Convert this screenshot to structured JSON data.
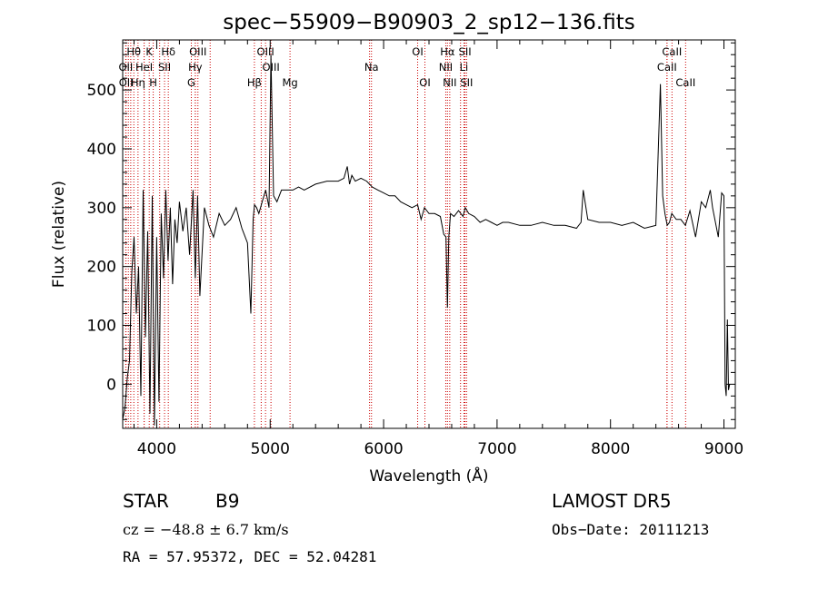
{
  "chart_data": {
    "type": "line",
    "title": "spec−55909−B90903_2_sp12−136.fits",
    "xlabel": "Wavelength (Å)",
    "ylabel": "Flux (relative)",
    "xlim": [
      3700,
      9100
    ],
    "ylim": [
      -75,
      585
    ],
    "x_ticks": [
      4000,
      5000,
      6000,
      7000,
      8000,
      9000
    ],
    "y_ticks": [
      0,
      100,
      200,
      300,
      400,
      500
    ],
    "grid": false,
    "line_color": "#000000",
    "marker_color": "#cc0000",
    "series": [
      {
        "x": [
          3700,
          3720,
          3740,
          3760,
          3780,
          3800,
          3820,
          3840,
          3860,
          3880,
          3900,
          3920,
          3940,
          3960,
          3980,
          4000,
          4020,
          4040,
          4060,
          4080,
          4100,
          4120,
          4140,
          4160,
          4180,
          4200,
          4230,
          4260,
          4290,
          4320,
          4340,
          4360,
          4380,
          4420,
          4460,
          4500,
          4550,
          4600,
          4650,
          4700,
          4750,
          4800,
          4830,
          4850,
          4862,
          4880,
          4900,
          4930,
          4960,
          4990,
          5007,
          5030,
          5060,
          5100,
          5150,
          5200,
          5250,
          5300,
          5400,
          5500,
          5600,
          5650,
          5680,
          5700,
          5720,
          5750,
          5800,
          5850,
          5900,
          5950,
          6000,
          6050,
          6100,
          6150,
          6200,
          6250,
          6300,
          6330,
          6360,
          6400,
          6450,
          6500,
          6530,
          6550,
          6563,
          6575,
          6590,
          6620,
          6660,
          6700,
          6720,
          6750,
          6800,
          6850,
          6900,
          6950,
          7000,
          7050,
          7100,
          7200,
          7300,
          7400,
          7500,
          7600,
          7700,
          7740,
          7760,
          7800,
          7900,
          8000,
          8100,
          8200,
          8300,
          8400,
          8440,
          8460,
          8480,
          8500,
          8520,
          8540,
          8580,
          8620,
          8660,
          8700,
          8750,
          8800,
          8840,
          8880,
          8900,
          8950,
          8980,
          9000,
          9010,
          9020,
          9030,
          9040,
          9050
        ],
        "y": [
          -60,
          -40,
          10,
          40,
          190,
          250,
          120,
          200,
          -20,
          330,
          80,
          260,
          -50,
          320,
          -70,
          250,
          -30,
          290,
          180,
          330,
          210,
          300,
          170,
          280,
          240,
          310,
          260,
          300,
          220,
          330,
          180,
          320,
          150,
          300,
          270,
          250,
          290,
          270,
          280,
          300,
          265,
          240,
          120,
          280,
          305,
          300,
          290,
          310,
          330,
          300,
          560,
          320,
          310,
          330,
          330,
          330,
          335,
          330,
          340,
          345,
          345,
          350,
          370,
          340,
          355,
          345,
          350,
          345,
          335,
          330,
          325,
          320,
          320,
          310,
          305,
          300,
          305,
          280,
          300,
          290,
          290,
          285,
          255,
          250,
          130,
          250,
          290,
          285,
          295,
          285,
          300,
          290,
          285,
          275,
          280,
          275,
          270,
          275,
          275,
          270,
          270,
          275,
          270,
          270,
          265,
          275,
          330,
          280,
          275,
          275,
          270,
          275,
          265,
          270,
          510,
          320,
          290,
          270,
          275,
          290,
          280,
          280,
          270,
          295,
          250,
          310,
          300,
          330,
          300,
          250,
          325,
          320,
          0,
          -20,
          110,
          -10,
          0
        ]
      }
    ],
    "spectral_lines": [
      {
        "label": "Hθ",
        "x": 3798
      },
      {
        "label": "K",
        "x": 3934
      },
      {
        "label": "Hδ",
        "x": 4102
      },
      {
        "label": "OIII",
        "x": 4363
      },
      {
        "label": "OIII",
        "x": 4959
      },
      {
        "label": "OI",
        "x": 6300
      },
      {
        "label": "Hα",
        "x": 6563
      },
      {
        "label": "SII",
        "x": 6717
      },
      {
        "label": "CaII",
        "x": 8542
      },
      {
        "label": "OII",
        "x": 3727
      },
      {
        "label": "HeI",
        "x": 3889
      },
      {
        "label": "SII",
        "x": 4069
      },
      {
        "label": "Hγ",
        "x": 4340
      },
      {
        "label": "OIII",
        "x": 5007
      },
      {
        "label": "Na",
        "x": 5893
      },
      {
        "label": "NII",
        "x": 6548
      },
      {
        "label": "Li",
        "x": 6708
      },
      {
        "label": "CaII",
        "x": 8498
      },
      {
        "label": "OII",
        "x": 3729
      },
      {
        "label": "Hη",
        "x": 3835
      },
      {
        "label": "H",
        "x": 3969
      },
      {
        "label": "G",
        "x": 4305
      },
      {
        "label": "Hβ",
        "x": 4861
      },
      {
        "label": "Mg",
        "x": 5175
      },
      {
        "label": "OI",
        "x": 6364
      },
      {
        "label": "NII",
        "x": 6583
      },
      {
        "label": "SII",
        "x": 6731
      },
      {
        "label": "CaII",
        "x": 8662
      }
    ],
    "extra_marker_lines": [
      3750,
      3771,
      3889,
      4026,
      4340,
      4471,
      4921,
      5876,
      6678,
      8498
    ]
  },
  "info": {
    "object_type": "STAR",
    "subclass": "B9",
    "survey": "LAMOST DR5",
    "velocity": "cz = −48.8 ± 6.7 km/s",
    "obs_date": "Obs−Date: 20111213",
    "coords": "RA =  57.95372, DEC =  52.04281"
  }
}
